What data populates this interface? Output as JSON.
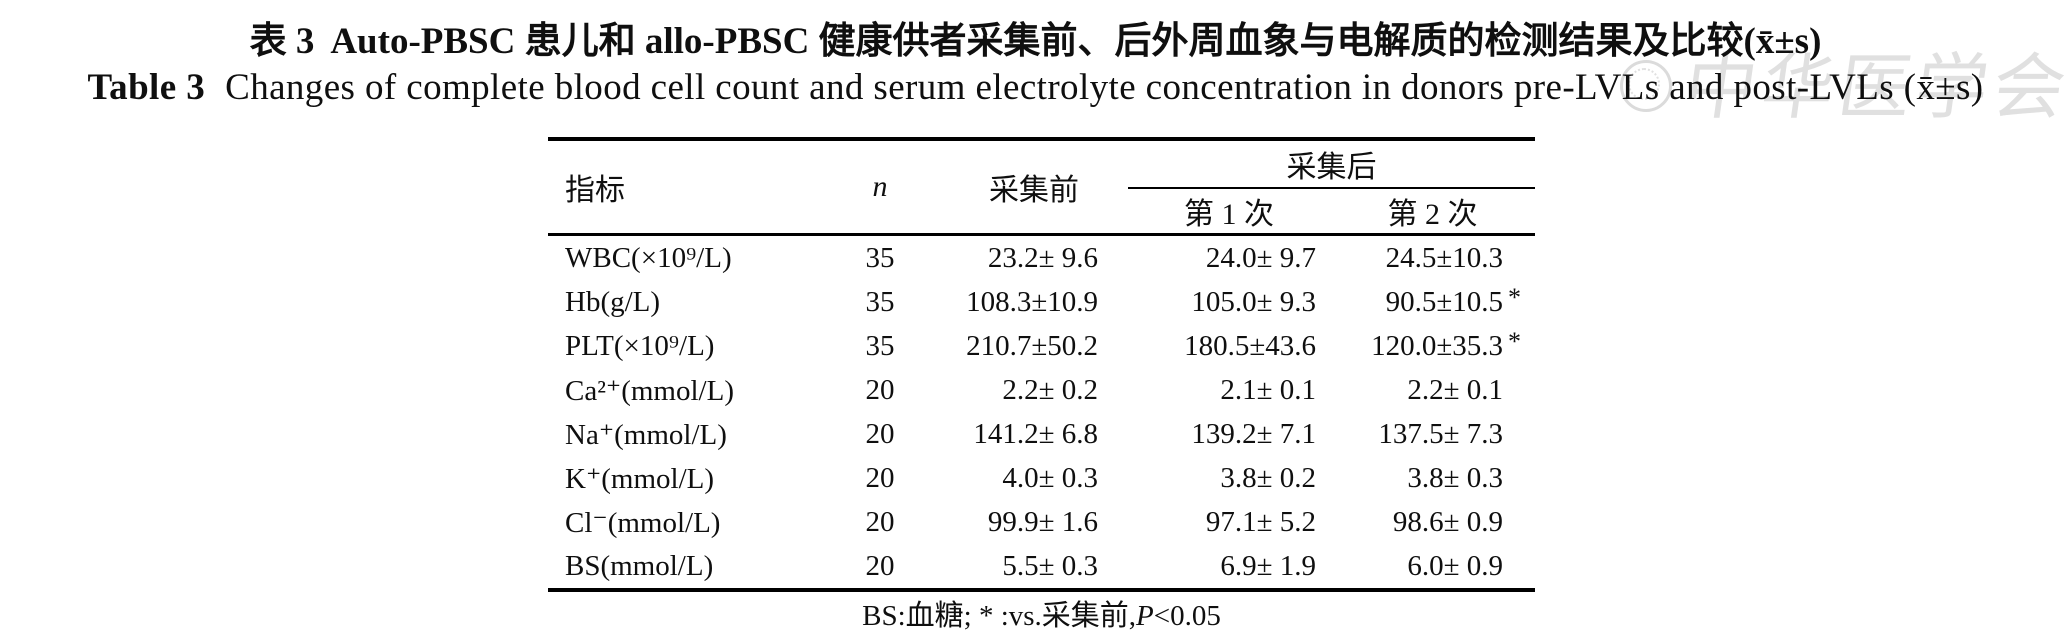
{
  "titles": {
    "zh_label": "表 3",
    "zh_text": "Auto-PBSC 患儿和 allo-PBSC 健康供者采集前、后外周血象与电解质的检测结果及比较(x̄±s)",
    "en_label": "Table 3",
    "en_text": "Changes of complete blood cell count and serum electrolyte concentration in donors pre-LVLs and post-LVLs (x̄±s)"
  },
  "watermark": {
    "text": "中华医学会"
  },
  "table": {
    "headers": {
      "indicator": "指标",
      "n": "n",
      "pre": "采集前",
      "post_group": "采集后",
      "post1": "第 1 次",
      "post2": "第 2 次"
    },
    "rows": [
      {
        "label": "WBC(×10⁹/L)",
        "n": "35",
        "pre": "23.2± 9.6",
        "post1": "24.0± 9.7",
        "post2": "24.5±10.3",
        "star": ""
      },
      {
        "label": "Hb(g/L)",
        "n": "35",
        "pre": "108.3±10.9",
        "post1": "105.0± 9.3",
        "post2": "90.5±10.5",
        "star": "*"
      },
      {
        "label": "PLT(×10⁹/L)",
        "n": "35",
        "pre": "210.7±50.2",
        "post1": "180.5±43.6",
        "post2": "120.0±35.3",
        "star": "*"
      },
      {
        "label": "Ca²⁺(mmol/L)",
        "n": "20",
        "pre": "2.2± 0.2",
        "post1": "2.1± 0.1",
        "post2": "2.2± 0.1",
        "star": ""
      },
      {
        "label": "Na⁺(mmol/L)",
        "n": "20",
        "pre": "141.2± 6.8",
        "post1": "139.2± 7.1",
        "post2": "137.5± 7.3",
        "star": ""
      },
      {
        "label": "K⁺(mmol/L)",
        "n": "20",
        "pre": "4.0± 0.3",
        "post1": "3.8± 0.2",
        "post2": "3.8± 0.3",
        "star": ""
      },
      {
        "label": "Cl⁻(mmol/L)",
        "n": "20",
        "pre": "99.9± 1.6",
        "post1": "97.1± 5.2",
        "post2": "98.6± 0.9",
        "star": ""
      },
      {
        "label": "BS(mmol/L)",
        "n": "20",
        "pre": "5.5± 0.3",
        "post1": "6.9± 1.9",
        "post2": "6.0± 0.9",
        "star": ""
      }
    ]
  },
  "footnote": {
    "pre": "BS:血糖; * :vs.采集前,",
    "p": "P",
    "post": "<0.05"
  }
}
